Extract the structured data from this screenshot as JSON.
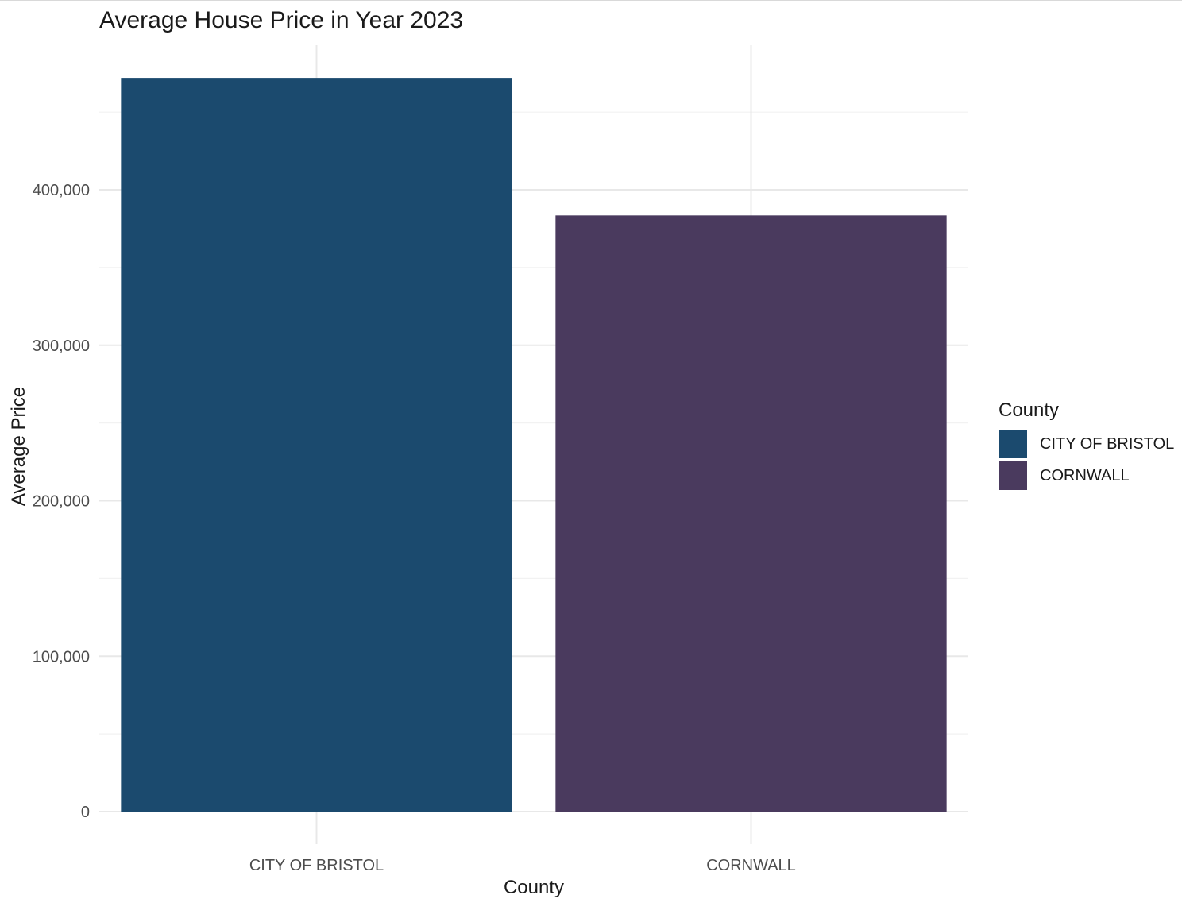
{
  "chart_data": {
    "type": "bar",
    "title": "Average House Price in Year 2023",
    "xlabel": "County",
    "ylabel": "Average Price",
    "categories": [
      "CITY OF BRISTOL",
      "CORNWALL"
    ],
    "values": [
      472000,
      383500
    ],
    "colors": [
      "#1b4a6e",
      "#4a3a5e"
    ],
    "ylim": [
      0,
      493000
    ],
    "yticks": [
      0,
      100000,
      200000,
      300000,
      400000
    ],
    "ytick_labels": [
      "0",
      "100,000",
      "200,000",
      "300,000",
      "400,000"
    ],
    "grid": true,
    "legend": {
      "title": "County",
      "position": "right",
      "entries": [
        "CITY OF BRISTOL",
        "CORNWALL"
      ]
    }
  }
}
